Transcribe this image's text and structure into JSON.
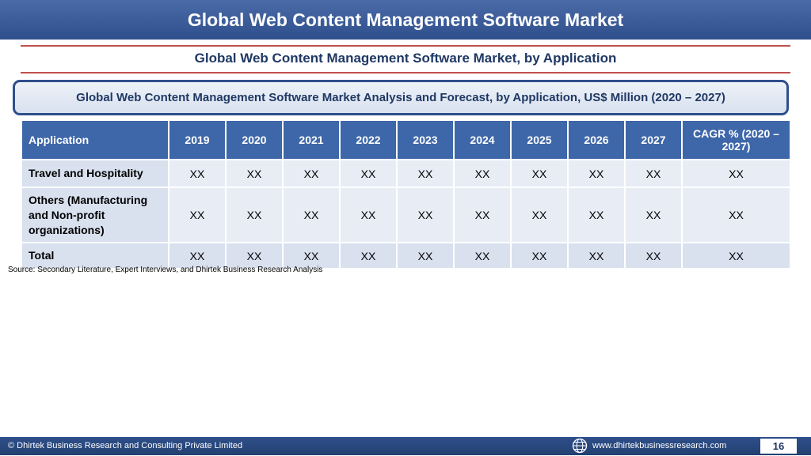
{
  "header": {
    "title": "Global Web Content Management Software Market"
  },
  "subtitle": "Global Web Content Management Software Market, by Application",
  "banner": "Global Web Content Management Software Market Analysis and Forecast, by Application, US$ Million (2020 – 2027)",
  "table": {
    "columns": [
      "Application",
      "2019",
      "2020",
      "2021",
      "2022",
      "2023",
      "2024",
      "2025",
      "2026",
      "2027",
      "CAGR % (2020 – 2027)"
    ],
    "rows": [
      {
        "label": "Travel and Hospitality",
        "values": [
          "XX",
          "XX",
          "XX",
          "XX",
          "XX",
          "XX",
          "XX",
          "XX",
          "XX",
          "XX"
        ]
      },
      {
        "label": "Others (Manufacturing and Non-profit organizations)",
        "values": [
          "XX",
          "XX",
          "XX",
          "XX",
          "XX",
          "XX",
          "XX",
          "XX",
          "XX",
          "XX"
        ]
      },
      {
        "label": "Total",
        "values": [
          "XX",
          "XX",
          "XX",
          "XX",
          "XX",
          "XX",
          "XX",
          "XX",
          "XX",
          "XX"
        ]
      }
    ]
  },
  "source": "Source: Secondary Literature, Expert Interviews, and Dhirtek Business Research Analysis",
  "footer": {
    "copyright": "© Dhirtek Business Research and Consulting Private Limited",
    "url": "www.dhirtekbusinessresearch.com",
    "page": "16",
    "globe_icon": "globe-icon"
  },
  "colors": {
    "header_bar": "#2f4f8c",
    "table_header": "#3e67a9",
    "rule": "#c0504d",
    "title_text": "#1f3864"
  }
}
